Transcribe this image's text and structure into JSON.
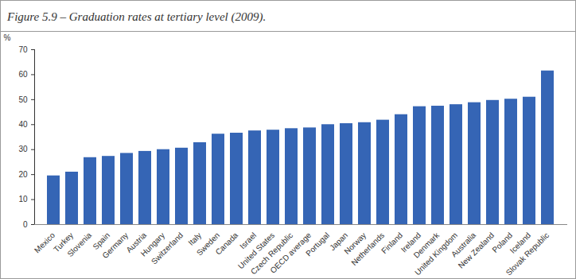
{
  "chart_data": {
    "type": "bar",
    "title": "Figure 5.9 – Graduation rates at tertiary level (2009).",
    "y_label": "%",
    "categories": [
      "Mexico",
      "Turkey",
      "Slovenia",
      "Spain",
      "Germany",
      "Austria",
      "Hungary",
      "Switzerland",
      "Italy",
      "Sweden",
      "Canada",
      "Israel",
      "United States",
      "Czech Republic",
      "OECD average",
      "Portugal",
      "Japan",
      "Norway",
      "Netherlands",
      "Finland",
      "Ireland",
      "Denmark",
      "United Kingdom",
      "Australia",
      "New Zealand",
      "Poland",
      "Iceland",
      "Slovak Republic"
    ],
    "values": [
      19.5,
      21,
      26.8,
      27.3,
      28.5,
      29.3,
      30,
      30.6,
      32.8,
      36.2,
      36.6,
      37.5,
      37.8,
      38.4,
      38.7,
      40,
      40.4,
      40.8,
      41.8,
      44,
      47.2,
      47.4,
      48,
      48.8,
      49.7,
      50.2,
      51,
      61.5
    ],
    "color": "#3565b5",
    "ylim": [
      0,
      70
    ],
    "yticks": [
      0,
      10,
      20,
      30,
      40,
      50,
      60,
      70
    ],
    "grid": false
  }
}
